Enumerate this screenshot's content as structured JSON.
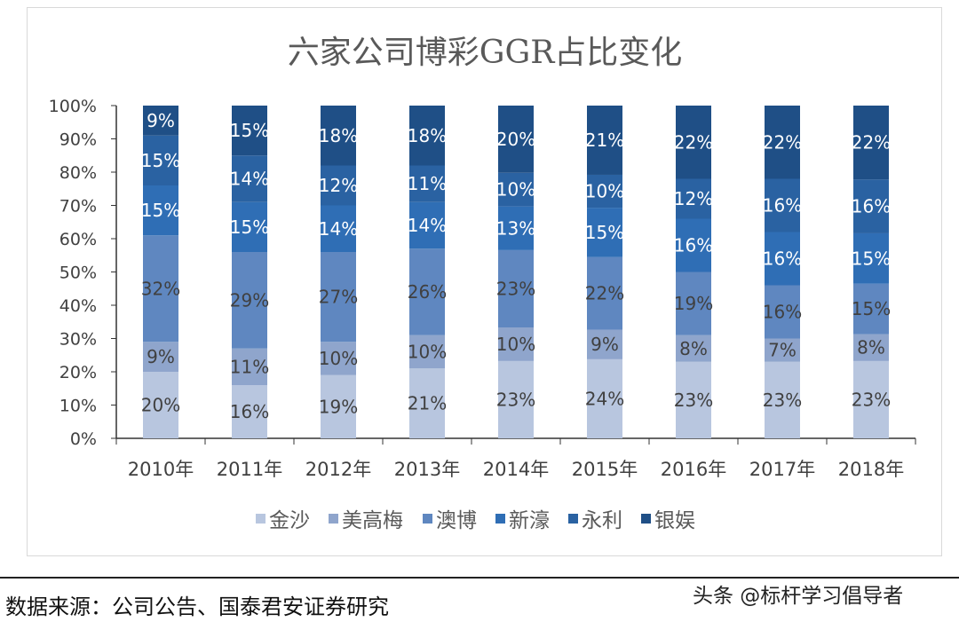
{
  "chart_data": {
    "type": "bar",
    "stacked": true,
    "title": "六家公司博彩GGR占比变化",
    "xlabel": "",
    "ylabel": "",
    "ylim": [
      0,
      100
    ],
    "yticks": [
      "0%",
      "10%",
      "20%",
      "30%",
      "40%",
      "50%",
      "60%",
      "70%",
      "80%",
      "90%",
      "100%"
    ],
    "categories": [
      "2010年",
      "2011年",
      "2012年",
      "2013年",
      "2014年",
      "2015年",
      "2016年",
      "2017年",
      "2018年"
    ],
    "series": [
      {
        "name": "金沙",
        "color": "#b8c6df",
        "label_color": "#404040",
        "values": [
          20,
          16,
          19,
          21,
          23,
          24,
          23,
          23,
          23
        ]
      },
      {
        "name": "美高梅",
        "color": "#8fa5cc",
        "label_color": "#404040",
        "values": [
          9,
          11,
          10,
          10,
          10,
          9,
          8,
          7,
          8
        ]
      },
      {
        "name": "澳博",
        "color": "#5f87c0",
        "label_color": "#404040",
        "values": [
          32,
          29,
          27,
          26,
          23,
          22,
          19,
          16,
          15
        ]
      },
      {
        "name": "新濠",
        "color": "#2f6eb5",
        "label_color": "#ffffff",
        "values": [
          15,
          15,
          14,
          14,
          13,
          15,
          16,
          16,
          15
        ]
      },
      {
        "name": "永利",
        "color": "#2a62a2",
        "label_color": "#ffffff",
        "values": [
          15,
          14,
          12,
          11,
          10,
          10,
          12,
          16,
          16
        ]
      },
      {
        "name": "银娱",
        "color": "#1f4f86",
        "label_color": "#ffffff",
        "values": [
          9,
          15,
          18,
          18,
          20,
          21,
          22,
          22,
          22
        ]
      }
    ],
    "value_format": "percent",
    "grid": false,
    "legend": "bottom"
  },
  "footer": {
    "source": "数据来源：公司公告、国泰君安证券研究",
    "watermark": "头条 @标杆学习倡导者"
  }
}
